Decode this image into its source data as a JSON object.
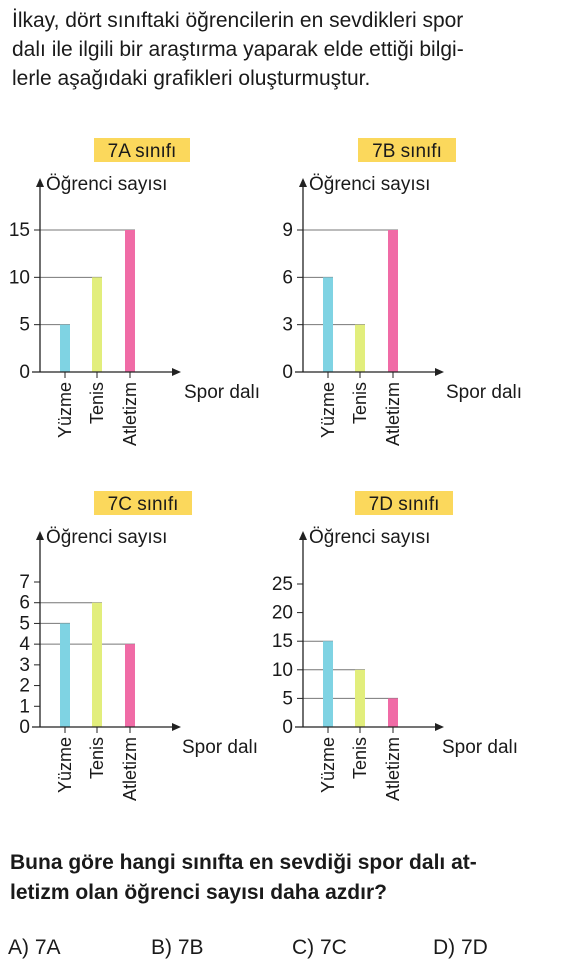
{
  "intro_lines": [
    "İlkay, dört sınıftaki öğrencilerin en sevdikleri spor",
    "dalı ile ilgili bir araştırma yaparak elde ettiği bilgi-",
    "lerle aşağıdaki grafikleri oluşturmuştur."
  ],
  "question_lines": [
    "Buna göre hangi sınıfta en sevdiği spor dalı at-",
    "letizm olan öğrenci sayısı daha azdır?"
  ],
  "options": [
    "A) 7A",
    "B) 7B",
    "C) 7C",
    "D) 7D"
  ],
  "colors": {
    "title_bg": "#fbd85c",
    "Yüzme": "#7fd3e3",
    "Tenis": "#e2ee7c",
    "Atletizm": "#f06ba6",
    "axis": "#222222",
    "guide": "#777777"
  },
  "chart_data": [
    {
      "type": "bar",
      "title": "7A sınıfı",
      "ylabel": "Öğrenci sayısı",
      "xlabel": "Spor dalı",
      "categories": [
        "Yüzme",
        "Tenis",
        "Atletizm"
      ],
      "values": [
        5,
        10,
        15
      ],
      "yticks": [
        0,
        5,
        10,
        15
      ],
      "ylim": [
        0,
        15
      ]
    },
    {
      "type": "bar",
      "title": "7B sınıfı",
      "ylabel": "Öğrenci sayısı",
      "xlabel": "Spor dalı",
      "categories": [
        "Yüzme",
        "Tenis",
        "Atletizm"
      ],
      "values": [
        6,
        3,
        9
      ],
      "yticks": [
        0,
        3,
        6,
        9
      ],
      "ylim": [
        0,
        9
      ]
    },
    {
      "type": "bar",
      "title": "7C sınıfı",
      "ylabel": "Öğrenci sayısı",
      "xlabel": "Spor dalı",
      "categories": [
        "Yüzme",
        "Tenis",
        "Atletizm"
      ],
      "values": [
        5,
        6,
        4
      ],
      "yticks": [
        0,
        1,
        2,
        3,
        4,
        5,
        6,
        7
      ],
      "ylim": [
        0,
        7
      ]
    },
    {
      "type": "bar",
      "title": "7D sınıfı",
      "ylabel": "Öğrenci sayısı",
      "xlabel": "Spor dalı",
      "categories": [
        "Yüzme",
        "Tenis",
        "Atletizm"
      ],
      "values": [
        15,
        10,
        5
      ],
      "yticks": [
        0,
        5,
        10,
        15,
        20,
        25
      ],
      "ylim": [
        0,
        25
      ]
    }
  ]
}
